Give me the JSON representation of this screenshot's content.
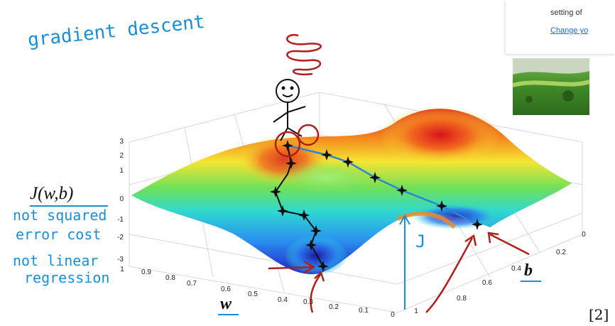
{
  "header": {
    "title": "gradient descent"
  },
  "annotations": {
    "cost_label": "J(w,b)",
    "notes": [
      "not squared",
      "error cost",
      "not linear",
      "regression"
    ],
    "w_label": "w",
    "b_label": "b",
    "j_label": "J"
  },
  "axes": {
    "z_ticks": [
      3,
      2,
      1,
      0,
      -1,
      -2,
      -3
    ],
    "w_ticks": [
      1,
      0.9,
      0.8,
      0.7,
      0.6,
      0.5,
      0.4,
      0.3,
      0.2,
      0.1,
      0
    ],
    "b_ticks": [
      0,
      0.2,
      0.4,
      0.6,
      0.8,
      1
    ]
  },
  "popup": {
    "text": "setting of",
    "link": "Change yo"
  },
  "footnote": "[2]"
}
